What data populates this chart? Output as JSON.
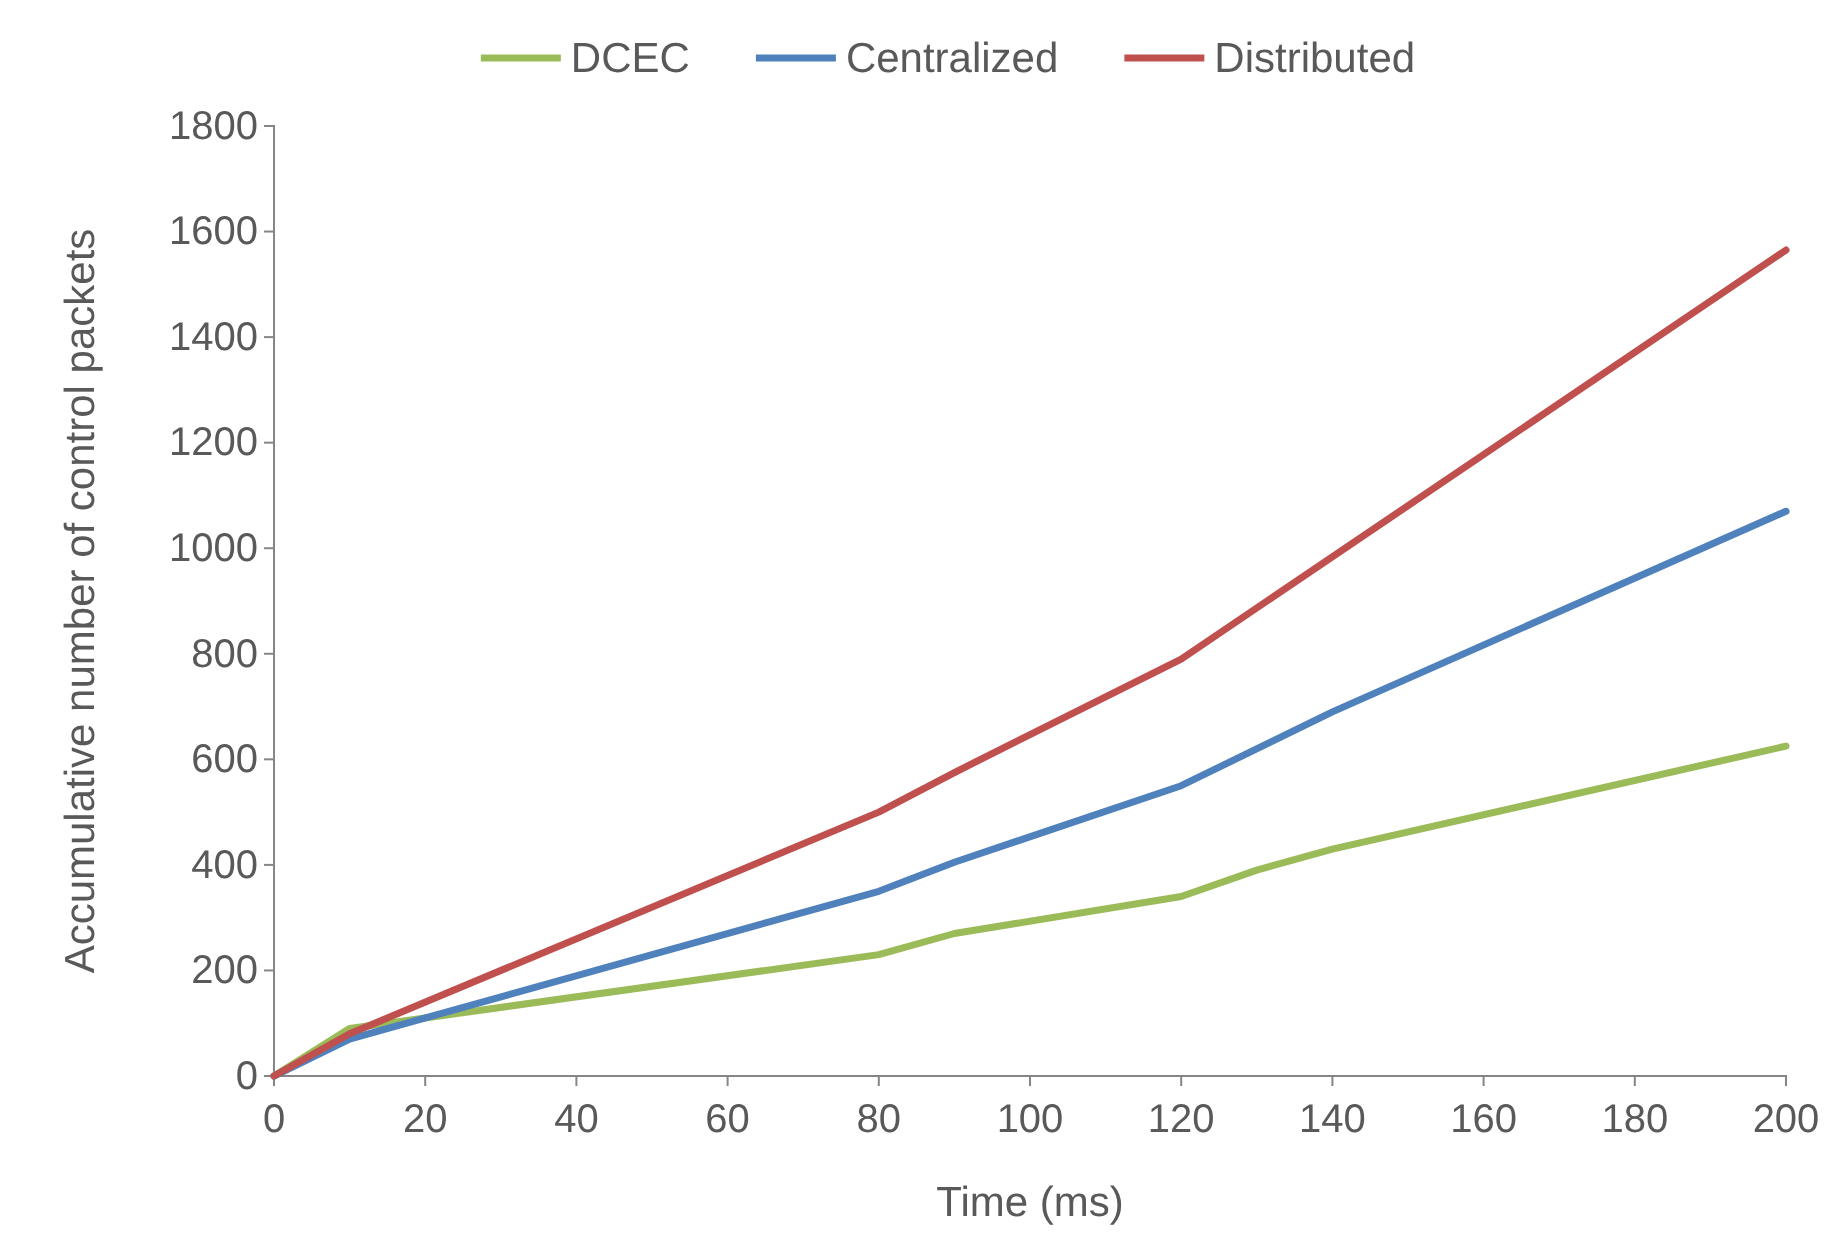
{
  "chart_data": {
    "type": "line",
    "xlabel": "Time (ms)",
    "ylabel": "Accumulative number of control packets",
    "xlim": [
      0,
      200
    ],
    "xticks": [
      0,
      20,
      40,
      60,
      80,
      100,
      120,
      140,
      160,
      180,
      200
    ],
    "ylim": [
      0,
      1800
    ],
    "yticks": [
      0,
      200,
      400,
      600,
      800,
      1000,
      1200,
      1400,
      1600,
      1800
    ],
    "grid": false,
    "legend": "top",
    "marker": "none",
    "line_style": "solid",
    "series": [
      {
        "name": "DCEC",
        "color": "#9bbb59",
        "x": [
          0,
          10,
          20,
          80,
          90,
          120,
          130,
          140,
          200
        ],
        "values": [
          0,
          90,
          110,
          230,
          270,
          340,
          390,
          430,
          625
        ]
      },
      {
        "name": "Centralized",
        "color": "#4f81bd",
        "x": [
          0,
          10,
          80,
          90,
          120,
          140,
          200
        ],
        "values": [
          0,
          70,
          350,
          405,
          550,
          690,
          1070
        ]
      },
      {
        "name": "Distributed",
        "color": "#c0504d",
        "x": [
          0,
          10,
          80,
          90,
          120,
          200
        ],
        "values": [
          0,
          80,
          500,
          575,
          790,
          1565
        ]
      }
    ]
  }
}
